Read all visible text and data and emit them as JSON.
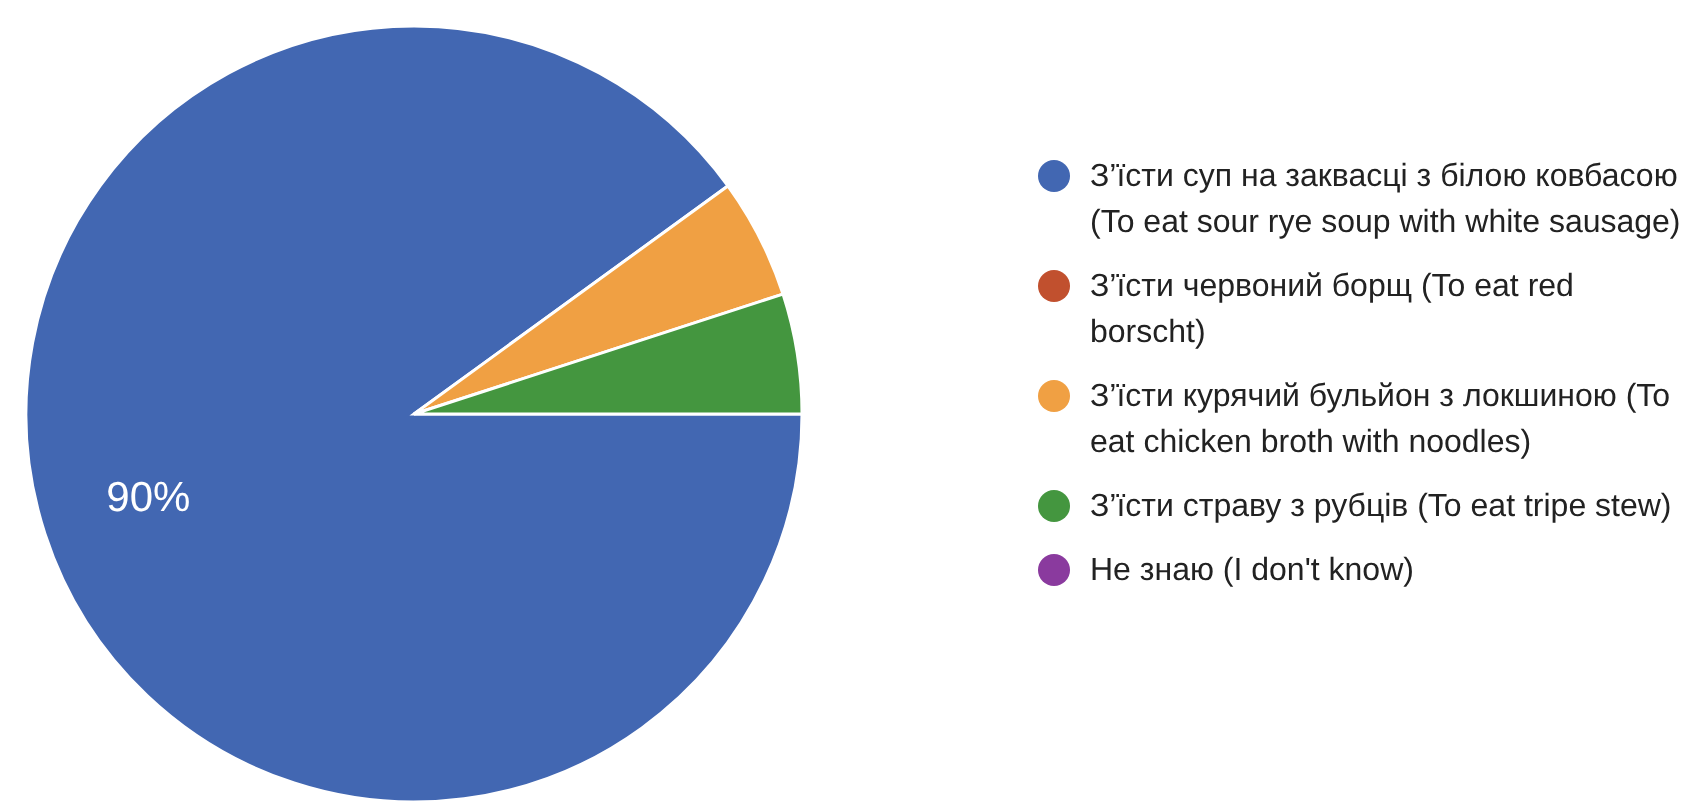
{
  "chart_data": {
    "type": "pie",
    "categories": [
      "З’їсти суп на заквасці з білою ковбасою (To eat sour rye soup with white sausage)",
      "З’їсти червоний борщ (To eat red borscht)",
      "З’їсти курячий бульйон з локшиною (To eat chicken broth with noodles)",
      "З’їсти страву з рубців (To eat tripe stew)",
      "Не знаю (I don't know)"
    ],
    "values": [
      90,
      0,
      5,
      5,
      0
    ],
    "colors": [
      "#4267b2",
      "#c1502e",
      "#f0a043",
      "#44963f",
      "#8a3a9e"
    ],
    "value_labels": [
      "90%",
      null,
      null,
      null,
      null
    ],
    "legend": "right"
  }
}
